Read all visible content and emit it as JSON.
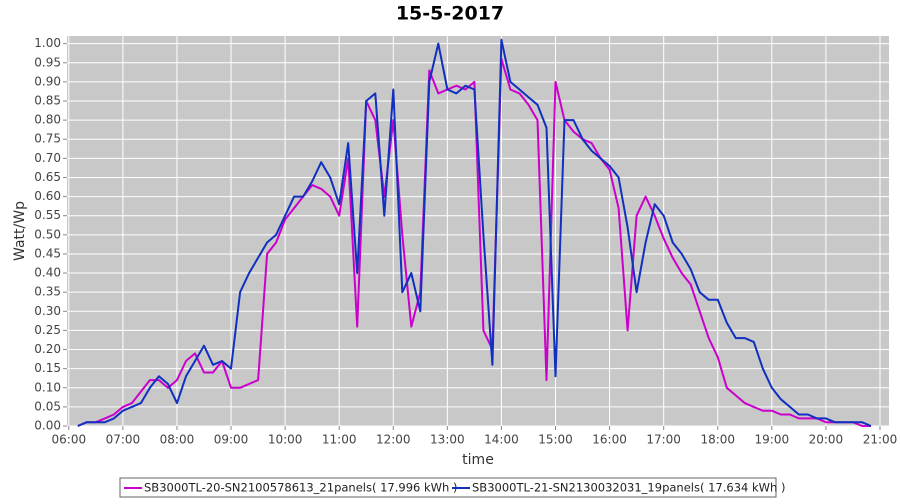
{
  "chart_data": {
    "type": "line",
    "title": "15-5-2017",
    "x_label": "time",
    "y_label": "Watt/Wp",
    "x": [
      "06:10",
      "06:20",
      "06:30",
      "06:40",
      "06:50",
      "07:00",
      "07:10",
      "07:20",
      "07:30",
      "07:40",
      "07:50",
      "08:00",
      "08:10",
      "08:20",
      "08:30",
      "08:40",
      "08:50",
      "09:00",
      "09:10",
      "09:20",
      "09:30",
      "09:40",
      "09:50",
      "10:00",
      "10:10",
      "10:20",
      "10:30",
      "10:40",
      "10:50",
      "11:00",
      "11:10",
      "11:20",
      "11:30",
      "11:40",
      "11:50",
      "12:00",
      "12:10",
      "12:20",
      "12:30",
      "12:40",
      "12:50",
      "13:00",
      "13:10",
      "13:20",
      "13:30",
      "13:40",
      "13:50",
      "14:00",
      "14:10",
      "14:20",
      "14:30",
      "14:40",
      "14:50",
      "15:00",
      "15:10",
      "15:20",
      "15:30",
      "15:40",
      "15:50",
      "16:00",
      "16:10",
      "16:20",
      "16:30",
      "16:40",
      "16:50",
      "17:00",
      "17:10",
      "17:20",
      "17:30",
      "17:40",
      "17:50",
      "18:00",
      "18:10",
      "18:20",
      "18:30",
      "18:40",
      "18:50",
      "19:00",
      "19:10",
      "19:20",
      "19:30",
      "19:40",
      "19:50",
      "20:00",
      "20:10",
      "20:20",
      "20:30",
      "20:40",
      "20:50"
    ],
    "series": [
      {
        "name": "SB3000TL-20-SN2100578613_21panels( 17.996 kWh )",
        "color": "#cc00cc",
        "values": [
          0.0,
          0.01,
          0.01,
          0.02,
          0.03,
          0.05,
          0.06,
          0.09,
          0.12,
          0.12,
          0.1,
          0.12,
          0.17,
          0.19,
          0.14,
          0.14,
          0.17,
          0.1,
          0.1,
          0.11,
          0.12,
          0.45,
          0.48,
          0.54,
          0.57,
          0.6,
          0.63,
          0.62,
          0.6,
          0.55,
          0.7,
          0.26,
          0.85,
          0.8,
          0.6,
          0.8,
          0.5,
          0.26,
          0.35,
          0.93,
          0.87,
          0.88,
          0.89,
          0.88,
          0.9,
          0.25,
          0.2,
          0.96,
          0.88,
          0.87,
          0.84,
          0.8,
          0.12,
          0.9,
          0.8,
          0.77,
          0.75,
          0.74,
          0.7,
          0.67,
          0.57,
          0.25,
          0.55,
          0.6,
          0.55,
          0.49,
          0.44,
          0.4,
          0.37,
          0.3,
          0.23,
          0.18,
          0.1,
          0.08,
          0.06,
          0.05,
          0.04,
          0.04,
          0.03,
          0.03,
          0.02,
          0.02,
          0.02,
          0.01,
          0.01,
          0.01,
          0.01,
          0.0,
          0.0
        ]
      },
      {
        "name": "SB3000TL-21-SN2130032031_19panels( 17.634 kWh )",
        "color": "#1030c0",
        "values": [
          0.0,
          0.01,
          0.01,
          0.01,
          0.02,
          0.04,
          0.05,
          0.06,
          0.1,
          0.13,
          0.11,
          0.06,
          0.13,
          0.17,
          0.21,
          0.16,
          0.17,
          0.15,
          0.35,
          0.4,
          0.44,
          0.48,
          0.5,
          0.55,
          0.6,
          0.6,
          0.64,
          0.69,
          0.65,
          0.58,
          0.74,
          0.4,
          0.85,
          0.87,
          0.55,
          0.88,
          0.35,
          0.4,
          0.3,
          0.9,
          1.0,
          0.88,
          0.87,
          0.89,
          0.88,
          0.5,
          0.16,
          1.01,
          0.9,
          0.88,
          0.86,
          0.84,
          0.78,
          0.13,
          0.8,
          0.8,
          0.75,
          0.72,
          0.7,
          0.68,
          0.65,
          0.52,
          0.35,
          0.48,
          0.58,
          0.55,
          0.48,
          0.45,
          0.41,
          0.35,
          0.33,
          0.33,
          0.27,
          0.23,
          0.23,
          0.22,
          0.15,
          0.1,
          0.07,
          0.05,
          0.03,
          0.03,
          0.02,
          0.02,
          0.01,
          0.01,
          0.01,
          0.01,
          0.0
        ]
      }
    ],
    "xlim": [
      "05:58",
      "21:10"
    ],
    "xticks": [
      "06:00",
      "07:00",
      "08:00",
      "09:00",
      "10:00",
      "11:00",
      "12:00",
      "13:00",
      "14:00",
      "15:00",
      "16:00",
      "17:00",
      "18:00",
      "19:00",
      "20:00",
      "21:00"
    ],
    "ylim": [
      0,
      1.02
    ],
    "yticks": [
      {
        "value": 0,
        "label": "0.00"
      },
      {
        "value": 0.05,
        "label": "0.05"
      },
      {
        "value": 0.1,
        "label": "0.10"
      },
      {
        "value": 0.15,
        "label": "0.15"
      },
      {
        "value": 0.2,
        "label": "0.20"
      },
      {
        "value": 0.25,
        "label": "0.25"
      },
      {
        "value": 0.3,
        "label": "0.30"
      },
      {
        "value": 0.35,
        "label": "0.35"
      },
      {
        "value": 0.4,
        "label": "0.40"
      },
      {
        "value": 0.45,
        "label": "0.45"
      },
      {
        "value": 0.5,
        "label": "0.50"
      },
      {
        "value": 0.55,
        "label": "0.55"
      },
      {
        "value": 0.6,
        "label": "0.60"
      },
      {
        "value": 0.65,
        "label": "0.65"
      },
      {
        "value": 0.7,
        "label": "0.70"
      },
      {
        "value": 0.75,
        "label": "0.75"
      },
      {
        "value": 0.8,
        "label": "0.80"
      },
      {
        "value": 0.85,
        "label": "0.85"
      },
      {
        "value": 0.9,
        "label": "0.90"
      },
      {
        "value": 0.95,
        "label": "0.95"
      },
      {
        "value": 1,
        "label": "1.00"
      }
    ],
    "grid": true
  }
}
